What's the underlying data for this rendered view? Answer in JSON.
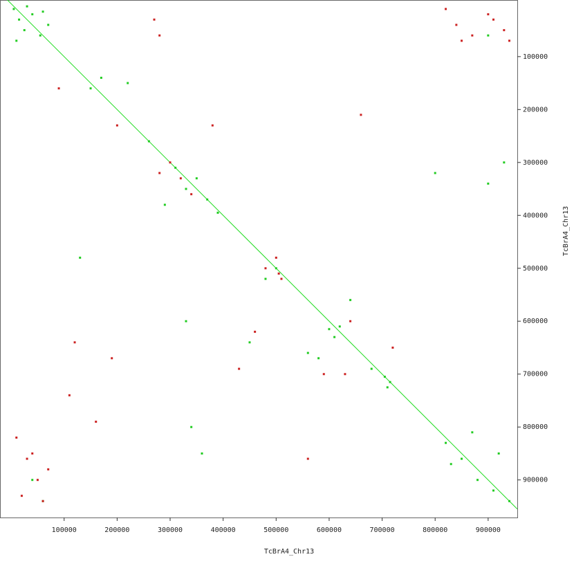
{
  "chart_data": {
    "type": "scatter",
    "x_label": "TcBrA4_Chr13",
    "y_label": "TcBrA4_Chr13",
    "xlim": [
      -21000,
      955000
    ],
    "ylim": [
      -7000,
      971000
    ],
    "y_inverted": true,
    "xticks": [
      100000,
      200000,
      300000,
      400000,
      500000,
      600000,
      700000,
      800000,
      900000
    ],
    "yticks": [
      100000,
      200000,
      300000,
      400000,
      500000,
      600000,
      700000,
      800000,
      900000
    ],
    "diagonal": {
      "color": "#22dd22",
      "x": [
        -21000,
        955000
      ],
      "y": [
        -21000,
        955000
      ]
    },
    "series": [
      {
        "color": "#22cc22",
        "x": [
          5000,
          15000,
          25000,
          40000,
          55000,
          70000,
          10000,
          30000,
          60000,
          150000,
          170000,
          330000,
          350000,
          370000,
          310000,
          290000,
          340000,
          360000,
          600000,
          610000,
          620000,
          705000,
          715000,
          710000,
          820000,
          850000,
          880000,
          910000,
          940000,
          830000,
          870000,
          920000,
          900000,
          500000,
          480000,
          130000,
          220000,
          560000,
          580000,
          450000,
          640000,
          680000,
          40000,
          60000,
          900000,
          930000,
          330000,
          800000,
          260000,
          390000
        ],
        "y": [
          10000,
          30000,
          50000,
          20000,
          60000,
          40000,
          70000,
          5000,
          15000,
          160000,
          140000,
          350000,
          330000,
          370000,
          310000,
          380000,
          800000,
          850000,
          615000,
          630000,
          610000,
          705000,
          715000,
          725000,
          830000,
          860000,
          900000,
          920000,
          940000,
          870000,
          810000,
          850000,
          60000,
          500000,
          520000,
          480000,
          150000,
          660000,
          670000,
          640000,
          560000,
          690000,
          900000,
          940000,
          340000,
          300000,
          600000,
          320000,
          260000,
          395000
        ]
      },
      {
        "color": "#cc2222",
        "x": [
          820000,
          840000,
          870000,
          900000,
          930000,
          850000,
          910000,
          940000,
          10000,
          30000,
          50000,
          70000,
          20000,
          60000,
          40000,
          300000,
          320000,
          340000,
          280000,
          460000,
          270000,
          280000,
          480000,
          500000,
          505000,
          510000,
          120000,
          190000,
          630000,
          640000,
          720000,
          430000,
          560000,
          590000,
          660000,
          380000,
          110000,
          160000,
          200000,
          90000
        ],
        "y": [
          10000,
          40000,
          60000,
          20000,
          50000,
          70000,
          30000,
          70000,
          820000,
          860000,
          900000,
          880000,
          930000,
          940000,
          850000,
          300000,
          330000,
          360000,
          320000,
          620000,
          30000,
          60000,
          500000,
          480000,
          510000,
          520000,
          640000,
          670000,
          700000,
          600000,
          650000,
          690000,
          860000,
          700000,
          210000,
          230000,
          740000,
          790000,
          230000,
          160000
        ]
      }
    ]
  }
}
